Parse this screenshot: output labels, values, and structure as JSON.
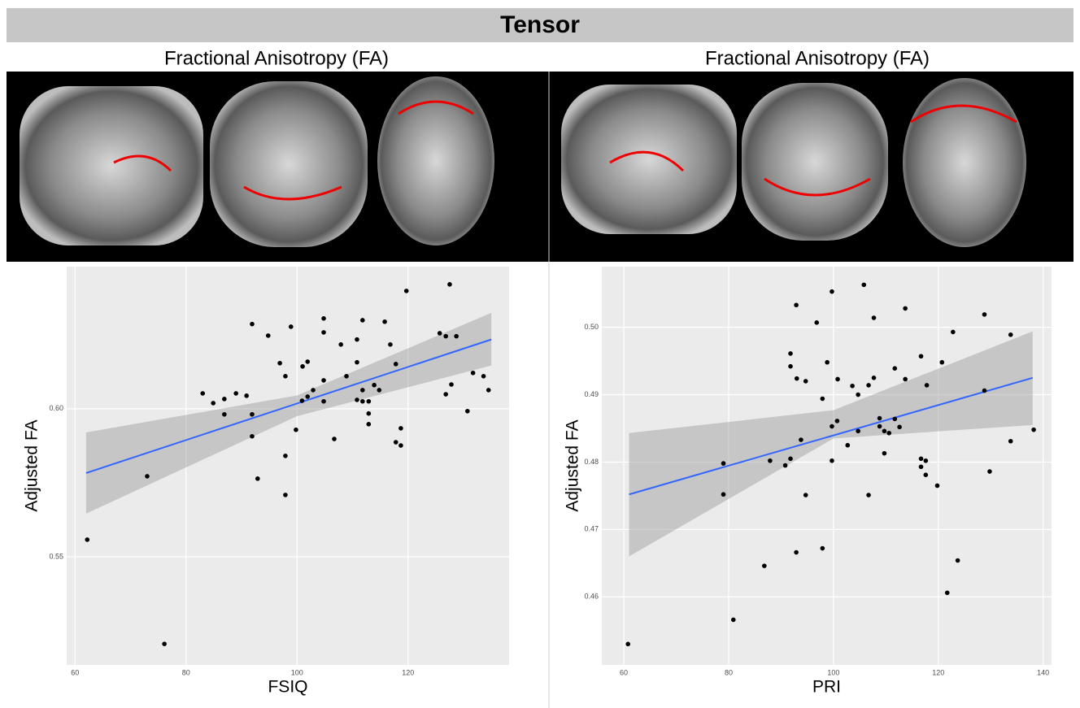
{
  "header": {
    "title": "Tensor"
  },
  "chart_data": [
    {
      "type": "scatter",
      "title": "Fractional Anisotropy (FA)",
      "x_label": "FSIQ",
      "y_label": "Adjusted FA",
      "color": "#000000",
      "grid": true,
      "xlim": [
        58.5,
        138.2
      ],
      "ylim": [
        0.5135,
        0.648
      ],
      "xticks": [
        60,
        80,
        100,
        120
      ],
      "yticks": [
        0.55,
        {
          "value": 0.6,
          "label": "0.60"
        }
      ],
      "x": [
        62.2,
        73.0,
        76.1,
        83.0,
        84.9,
        86.9,
        86.9,
        89.0,
        90.9,
        91.9,
        91.9,
        91.9,
        92.9,
        94.8,
        96.9,
        97.9,
        97.9,
        97.9,
        98.9,
        99.8,
        101.0,
        101.9,
        100.9,
        101.9,
        102.9,
        104.8,
        104.8,
        104.8,
        104.8,
        106.7,
        107.9,
        108.9,
        110.8,
        110.8,
        110.8,
        111.8,
        111.8,
        111.8,
        112.9,
        112.9,
        112.9,
        113.9,
        114.8,
        115.8,
        116.8,
        117.8,
        117.8,
        118.7,
        118.7,
        119.7,
        125.7,
        126.8,
        126.8,
        127.5,
        127.8,
        128.7,
        130.7,
        131.7,
        133.6,
        134.5
      ],
      "values": [
        0.5558,
        0.5772,
        0.5206,
        0.6052,
        0.6019,
        0.6033,
        0.5981,
        0.6052,
        0.6044,
        0.6286,
        0.5981,
        0.5907,
        0.5764,
        0.6247,
        0.6154,
        0.611,
        0.5841,
        0.5709,
        0.6277,
        0.5929,
        0.6143,
        0.6159,
        0.6027,
        0.6041,
        0.6063,
        0.6096,
        0.6025,
        0.6258,
        0.6305,
        0.5898,
        0.6217,
        0.611,
        0.6234,
        0.6157,
        0.603,
        0.6299,
        0.6063,
        0.6025,
        0.6025,
        0.5984,
        0.5948,
        0.608,
        0.6063,
        0.6294,
        0.6217,
        0.6151,
        0.5887,
        0.5876,
        0.5934,
        0.6398,
        0.6255,
        0.6245,
        0.6049,
        0.642,
        0.6082,
        0.6245,
        0.5992,
        0.6121,
        0.611,
        0.6063
      ],
      "fit": {
        "color": "#3366ff",
        "x": [
          62,
          135
        ],
        "y": [
          0.5783,
          0.6234
        ]
      },
      "ci": {
        "color": "#999999",
        "x": [
          62,
          100,
          135
        ],
        "upper": [
          0.592,
          0.6045,
          0.6324
        ],
        "lower": [
          0.5646,
          0.5975,
          0.6146
        ]
      }
    },
    {
      "type": "scatter",
      "title": "Fractional Anisotropy (FA)",
      "x_label": "PRI",
      "y_label": "Adjusted FA",
      "color": "#000000",
      "grid": true,
      "xlim": [
        55.8,
        141.6
      ],
      "ylim": [
        0.4499,
        0.509
      ],
      "xticks": [
        60,
        80,
        100,
        120,
        140
      ],
      "yticks": [
        0.46,
        0.47,
        0.48,
        0.49,
        {
          "value": 0.5,
          "label": "0.50"
        }
      ],
      "x": [
        60.8,
        79.0,
        79.0,
        80.9,
        86.8,
        87.9,
        90.8,
        91.8,
        91.8,
        91.8,
        92.9,
        93.0,
        92.9,
        93.8,
        94.7,
        94.7,
        96.8,
        97.9,
        97.9,
        98.8,
        99.7,
        99.7,
        99.7,
        100.7,
        100.8,
        103.6,
        102.7,
        104.7,
        104.7,
        105.8,
        106.7,
        106.7,
        107.7,
        107.7,
        108.8,
        108.8,
        109.7,
        110.6,
        109.7,
        111.7,
        111.7,
        112.6,
        113.7,
        113.7,
        116.7,
        116.7,
        116.7,
        117.6,
        117.6,
        117.8,
        119.8,
        120.7,
        121.7,
        122.8,
        123.7,
        128.8,
        128.8,
        129.8,
        133.8,
        133.8,
        138.2
      ],
      "values": [
        0.453,
        0.4798,
        0.4752,
        0.4566,
        0.4646,
        0.4802,
        0.4795,
        0.4805,
        0.4961,
        0.4942,
        0.5033,
        0.4924,
        0.4666,
        0.4833,
        0.492,
        0.4751,
        0.5007,
        0.4894,
        0.4672,
        0.4948,
        0.5053,
        0.4853,
        0.4802,
        0.4861,
        0.4923,
        0.4913,
        0.4825,
        0.49,
        0.4846,
        0.5063,
        0.4914,
        0.4751,
        0.5014,
        0.4925,
        0.4865,
        0.4853,
        0.4846,
        0.4843,
        0.4813,
        0.4939,
        0.4864,
        0.4852,
        0.5028,
        0.4923,
        0.4957,
        0.4805,
        0.4793,
        0.4802,
        0.4781,
        0.4914,
        0.4765,
        0.4948,
        0.4606,
        0.4993,
        0.4654,
        0.5019,
        0.4906,
        0.4786,
        0.4989,
        0.4831,
        0.4848
      ],
      "fit": {
        "color": "#3366ff",
        "x": [
          61,
          138
        ],
        "y": [
          0.4752,
          0.4925
        ]
      },
      "ci": {
        "color": "#999999",
        "x": [
          61,
          100,
          138
        ],
        "upper": [
          0.4843,
          0.4877,
          0.4994
        ],
        "lower": [
          0.466,
          0.4835,
          0.4855
        ]
      }
    }
  ]
}
